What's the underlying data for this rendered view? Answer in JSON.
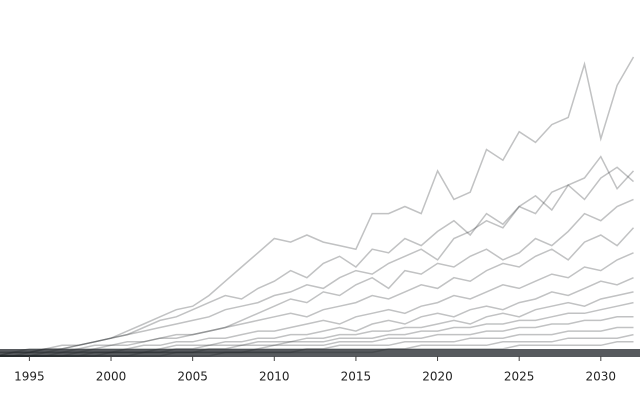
{
  "chart_data": {
    "type": "line",
    "color": "#1f2328",
    "line_opacity": 0.28,
    "x": [
      1993,
      1994,
      1995,
      1996,
      1997,
      1998,
      1999,
      2000,
      2001,
      2002,
      2003,
      2004,
      2005,
      2006,
      2007,
      2008,
      2009,
      2010,
      2011,
      2012,
      2013,
      2014,
      2015,
      2016,
      2017,
      2018,
      2019,
      2020,
      2021,
      2022,
      2023,
      2024,
      2025,
      2026,
      2027,
      2028,
      2029,
      2030,
      2031,
      2032
    ],
    "xlim": [
      1993.2,
      2032.4
    ],
    "xticks": [
      1995,
      2000,
      2005,
      2010,
      2015,
      2020,
      2025,
      2030
    ],
    "ylim": [
      0,
      100
    ],
    "series": [
      {
        "values": [
          1,
          1,
          1,
          2,
          2,
          3,
          4,
          5,
          7,
          9,
          11,
          13,
          14,
          17,
          21,
          25,
          29,
          33,
          32,
          34,
          32,
          31,
          30,
          40,
          40,
          42,
          40,
          52,
          44,
          46,
          58,
          55,
          63,
          60,
          65,
          67,
          82,
          61,
          76,
          84
        ]
      },
      {
        "values": [
          1,
          1,
          2,
          2,
          3,
          3,
          4,
          5,
          6,
          7,
          8,
          9,
          10,
          11,
          13,
          14,
          15,
          17,
          18,
          20,
          19,
          22,
          24,
          23,
          26,
          28,
          30,
          27,
          33,
          35,
          38,
          36,
          42,
          40,
          46,
          48,
          50,
          56,
          47,
          52
        ]
      },
      {
        "values": [
          0,
          1,
          1,
          1,
          2,
          2,
          3,
          3,
          4,
          4,
          5,
          6,
          6,
          7,
          8,
          9,
          10,
          11,
          12,
          11,
          13,
          14,
          15,
          17,
          16,
          18,
          20,
          19,
          22,
          21,
          24,
          26,
          25,
          28,
          30,
          27,
          32,
          34,
          31,
          36
        ]
      },
      {
        "values": [
          0,
          0,
          1,
          1,
          1,
          2,
          2,
          3,
          3,
          4,
          5,
          5,
          6,
          7,
          8,
          10,
          12,
          14,
          16,
          15,
          18,
          17,
          20,
          22,
          19,
          24,
          23,
          26,
          25,
          28,
          30,
          27,
          29,
          33,
          31,
          35,
          40,
          38,
          42,
          44
        ]
      },
      {
        "values": [
          0,
          0,
          0,
          1,
          1,
          1,
          2,
          2,
          2,
          3,
          3,
          4,
          4,
          5,
          5,
          6,
          7,
          7,
          8,
          9,
          10,
          9,
          11,
          12,
          13,
          12,
          14,
          15,
          17,
          16,
          18,
          20,
          19,
          21,
          23,
          22,
          25,
          24,
          27,
          29
        ]
      },
      {
        "values": [
          0,
          0,
          0,
          0,
          1,
          1,
          1,
          1,
          2,
          2,
          2,
          3,
          3,
          3,
          4,
          4,
          5,
          5,
          6,
          6,
          7,
          8,
          7,
          9,
          10,
          9,
          11,
          12,
          11,
          13,
          14,
          13,
          15,
          16,
          18,
          17,
          19,
          21,
          20,
          22
        ]
      },
      {
        "values": [
          0,
          0,
          0,
          0,
          0,
          1,
          1,
          1,
          1,
          1,
          2,
          2,
          2,
          3,
          3,
          3,
          4,
          4,
          4,
          5,
          5,
          6,
          6,
          7,
          7,
          8,
          8,
          9,
          10,
          9,
          11,
          12,
          11,
          13,
          14,
          15,
          14,
          16,
          17,
          18
        ]
      },
      {
        "values": [
          0,
          0,
          0,
          0,
          0,
          0,
          1,
          1,
          1,
          1,
          1,
          2,
          2,
          2,
          2,
          3,
          3,
          3,
          4,
          4,
          4,
          5,
          5,
          5,
          6,
          6,
          7,
          7,
          8,
          8,
          9,
          9,
          10,
          10,
          11,
          12,
          12,
          13,
          14,
          15
        ]
      },
      {
        "values": [
          0,
          0,
          0,
          0,
          0,
          0,
          0,
          1,
          1,
          1,
          1,
          1,
          1,
          2,
          2,
          2,
          2,
          3,
          3,
          3,
          3,
          4,
          4,
          4,
          5,
          5,
          5,
          6,
          6,
          6,
          7,
          7,
          8,
          8,
          9,
          9,
          10,
          10,
          11,
          11
        ]
      },
      {
        "values": [
          0,
          0,
          0,
          0,
          0,
          0,
          0,
          0,
          0,
          1,
          1,
          1,
          1,
          1,
          1,
          1,
          2,
          2,
          2,
          2,
          2,
          3,
          3,
          3,
          3,
          4,
          4,
          4,
          4,
          5,
          5,
          5,
          6,
          6,
          6,
          7,
          7,
          7,
          8,
          8
        ]
      },
      {
        "values": [
          0,
          0,
          0,
          0,
          0,
          0,
          0,
          0,
          0,
          0,
          0,
          1,
          1,
          1,
          1,
          1,
          1,
          1,
          1,
          2,
          2,
          2,
          2,
          2,
          2,
          2,
          3,
          3,
          3,
          3,
          3,
          4,
          4,
          4,
          4,
          5,
          5,
          5,
          5,
          6
        ]
      },
      {
        "values": [
          0,
          1,
          1,
          2,
          2,
          3,
          4,
          5,
          6,
          8,
          10,
          11,
          13,
          15,
          17,
          16,
          19,
          21,
          24,
          22,
          26,
          28,
          25,
          30,
          29,
          33,
          31,
          35,
          38,
          34,
          40,
          37,
          42,
          45,
          41,
          48,
          44,
          50,
          53,
          49
        ]
      },
      {
        "values": [
          0,
          0,
          0,
          0,
          0,
          0,
          0,
          0,
          0,
          0,
          0,
          0,
          0,
          0,
          1,
          1,
          1,
          1,
          1,
          1,
          1,
          1,
          1,
          1,
          2,
          2,
          2,
          2,
          2,
          2,
          2,
          2,
          3,
          3,
          3,
          3,
          3,
          3,
          4,
          4
        ]
      }
    ]
  }
}
